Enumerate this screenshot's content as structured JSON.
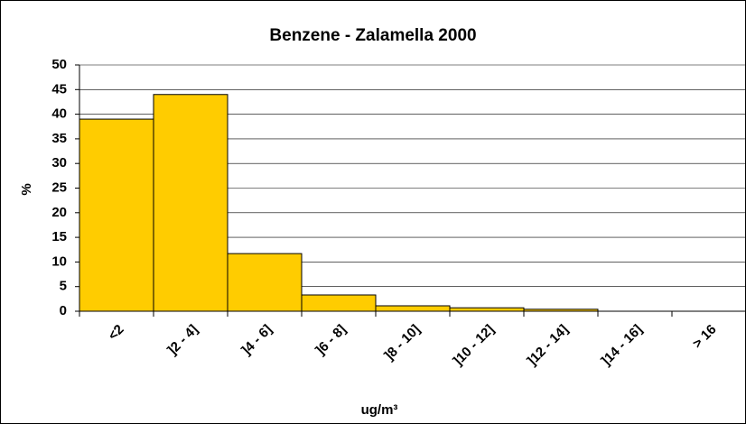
{
  "chart_data": {
    "type": "bar",
    "title": "Benzene - Zalamella 2000",
    "x_label": "ug/m³",
    "y_label": "%",
    "categories": [
      "<2",
      "]2 - 4]",
      "]4 - 6]",
      "]6 - 8]",
      "]8 - 10]",
      "]10 - 12]",
      "]12 - 14]",
      "]14 - 16]",
      "> 16"
    ],
    "values": [
      39,
      44,
      11.7,
      3.3,
      1.1,
      0.7,
      0.4,
      0,
      0
    ],
    "color": "#ffcc00",
    "ylim": [
      0,
      50
    ],
    "yticks": [
      0,
      5,
      10,
      15,
      20,
      25,
      30,
      35,
      40,
      45,
      50
    ],
    "grid": true
  }
}
